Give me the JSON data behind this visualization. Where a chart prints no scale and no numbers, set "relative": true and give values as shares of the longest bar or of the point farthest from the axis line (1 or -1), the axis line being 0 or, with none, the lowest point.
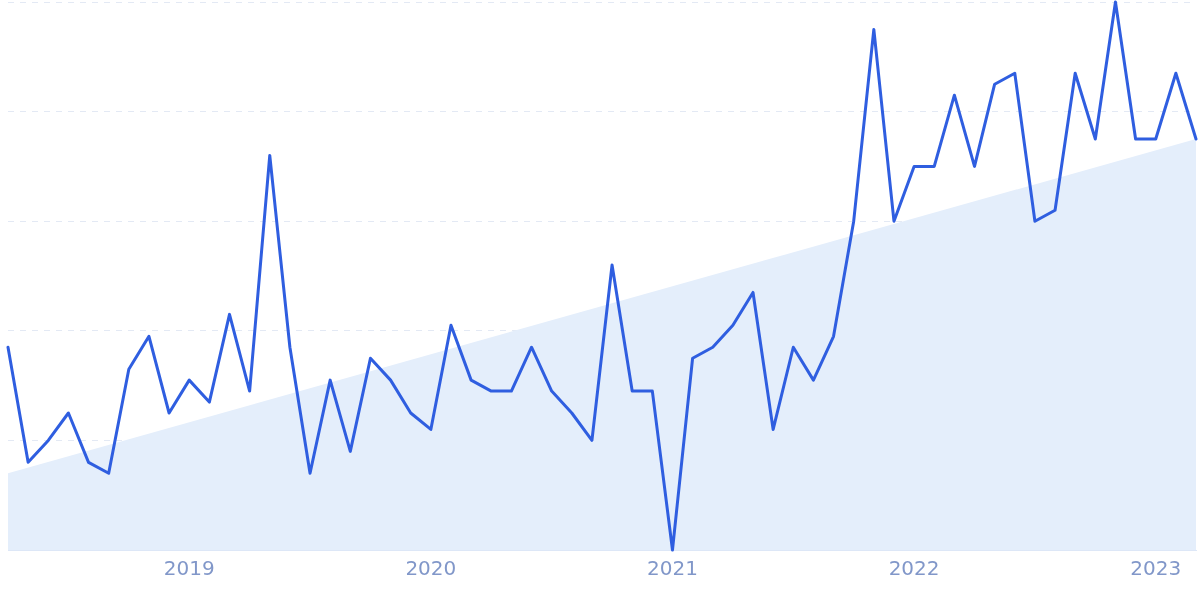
{
  "chart_data": {
    "type": "line",
    "relative": true,
    "grid": "y",
    "legend": false,
    "tick_labels": "x",
    "marker": "none",
    "xlim": [
      "2018-04",
      "2023-03"
    ],
    "xticks": [
      "2019",
      "2020",
      "2021",
      "2022",
      "2023"
    ],
    "series": [
      {
        "type": "area",
        "color": "#e4eefb",
        "x": [
          "2018-04",
          "2023-03"
        ],
        "values": [
          0.14,
          0.75
        ]
      },
      {
        "type": "line",
        "color": "#2f5ee0",
        "x": [
          "2018-04",
          "2018-05",
          "2018-06",
          "2018-07",
          "2018-08",
          "2018-09",
          "2018-10",
          "2018-11",
          "2018-12",
          "2019-01",
          "2019-02",
          "2019-03",
          "2019-04",
          "2019-05",
          "2019-06",
          "2019-07",
          "2019-08",
          "2019-09",
          "2019-10",
          "2019-11",
          "2019-12",
          "2020-01",
          "2020-02",
          "2020-03",
          "2020-04",
          "2020-05",
          "2020-06",
          "2020-07",
          "2020-08",
          "2020-09",
          "2020-10",
          "2020-11",
          "2020-12",
          "2021-01",
          "2021-02",
          "2021-03",
          "2021-04",
          "2021-05",
          "2021-06",
          "2021-07",
          "2021-08",
          "2021-09",
          "2021-10",
          "2021-11",
          "2021-12",
          "2022-01",
          "2022-02",
          "2022-03",
          "2022-04",
          "2022-05",
          "2022-06",
          "2022-07",
          "2022-08",
          "2022-09",
          "2022-10",
          "2022-11",
          "2022-12",
          "2023-01",
          "2023-02",
          "2023-03"
        ],
        "values": [
          0.37,
          0.16,
          0.2,
          0.25,
          0.16,
          0.14,
          0.33,
          0.39,
          0.25,
          0.31,
          0.27,
          0.43,
          0.29,
          0.72,
          0.37,
          0.14,
          0.31,
          0.18,
          0.35,
          0.31,
          0.25,
          0.22,
          0.41,
          0.31,
          0.29,
          0.29,
          0.37,
          0.29,
          0.25,
          0.2,
          0.52,
          0.29,
          0.29,
          0,
          0.35,
          0.37,
          0.41,
          0.47,
          0.22,
          0.37,
          0.31,
          0.39,
          0.6,
          0.95,
          0.6,
          0.7,
          0.7,
          0.83,
          0.7,
          0.85,
          0.87,
          0.6,
          0.62,
          0.87,
          0.75,
          1,
          0.75,
          0.75,
          0.87,
          0.75
        ]
      }
    ]
  }
}
